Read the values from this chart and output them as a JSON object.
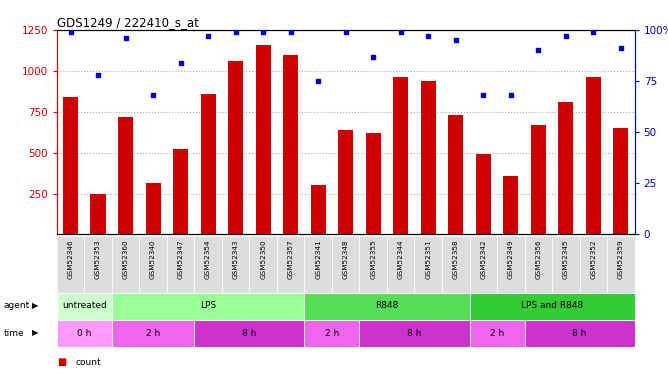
{
  "title": "GDS1249 / 222410_s_at",
  "samples": [
    "GSM52346",
    "GSM52353",
    "GSM52360",
    "GSM52340",
    "GSM52347",
    "GSM52354",
    "GSM52343",
    "GSM52350",
    "GSM52357",
    "GSM52341",
    "GSM52348",
    "GSM52355",
    "GSM52344",
    "GSM52351",
    "GSM52358",
    "GSM52342",
    "GSM52349",
    "GSM52356",
    "GSM52345",
    "GSM52352",
    "GSM52359"
  ],
  "counts": [
    840,
    248,
    720,
    315,
    520,
    860,
    1060,
    1160,
    1100,
    305,
    640,
    620,
    960,
    940,
    730,
    490,
    355,
    670,
    810,
    960,
    650
  ],
  "percentiles": [
    99,
    78,
    96,
    68,
    84,
    97,
    99,
    99,
    99,
    75,
    99,
    87,
    99,
    97,
    95,
    68,
    68,
    90,
    97,
    99,
    91
  ],
  "ylim_left": [
    0,
    1250
  ],
  "ylim_right": [
    0,
    100
  ],
  "yticks_left": [
    250,
    500,
    750,
    1000,
    1250
  ],
  "yticks_right": [
    0,
    25,
    50,
    75,
    100
  ],
  "bar_color": "#cc0000",
  "dot_color": "#0000cc",
  "agent_groups": [
    {
      "label": "untreated",
      "start": 0,
      "end": 2,
      "color": "#ccffcc"
    },
    {
      "label": "LPS",
      "start": 2,
      "end": 9,
      "color": "#99ff99"
    },
    {
      "label": "R848",
      "start": 9,
      "end": 15,
      "color": "#55dd55"
    },
    {
      "label": "LPS and R848",
      "start": 15,
      "end": 21,
      "color": "#33cc33"
    }
  ],
  "time_groups": [
    {
      "label": "0 h",
      "start": 0,
      "end": 2,
      "color": "#ff99ff"
    },
    {
      "label": "2 h",
      "start": 2,
      "end": 5,
      "color": "#ee66ee"
    },
    {
      "label": "8 h",
      "start": 5,
      "end": 9,
      "color": "#cc33cc"
    },
    {
      "label": "2 h",
      "start": 9,
      "end": 11,
      "color": "#ee66ee"
    },
    {
      "label": "8 h",
      "start": 11,
      "end": 15,
      "color": "#cc33cc"
    },
    {
      "label": "2 h",
      "start": 15,
      "end": 17,
      "color": "#ee66ee"
    },
    {
      "label": "8 h",
      "start": 17,
      "end": 21,
      "color": "#cc33cc"
    }
  ],
  "legend_count_color": "#cc0000",
  "legend_dot_color": "#0000cc",
  "grid_color": "#aaaaaa",
  "axis_color_left": "#cc0000",
  "axis_color_right": "#0000cc",
  "bg_sample_label": "#dddddd"
}
